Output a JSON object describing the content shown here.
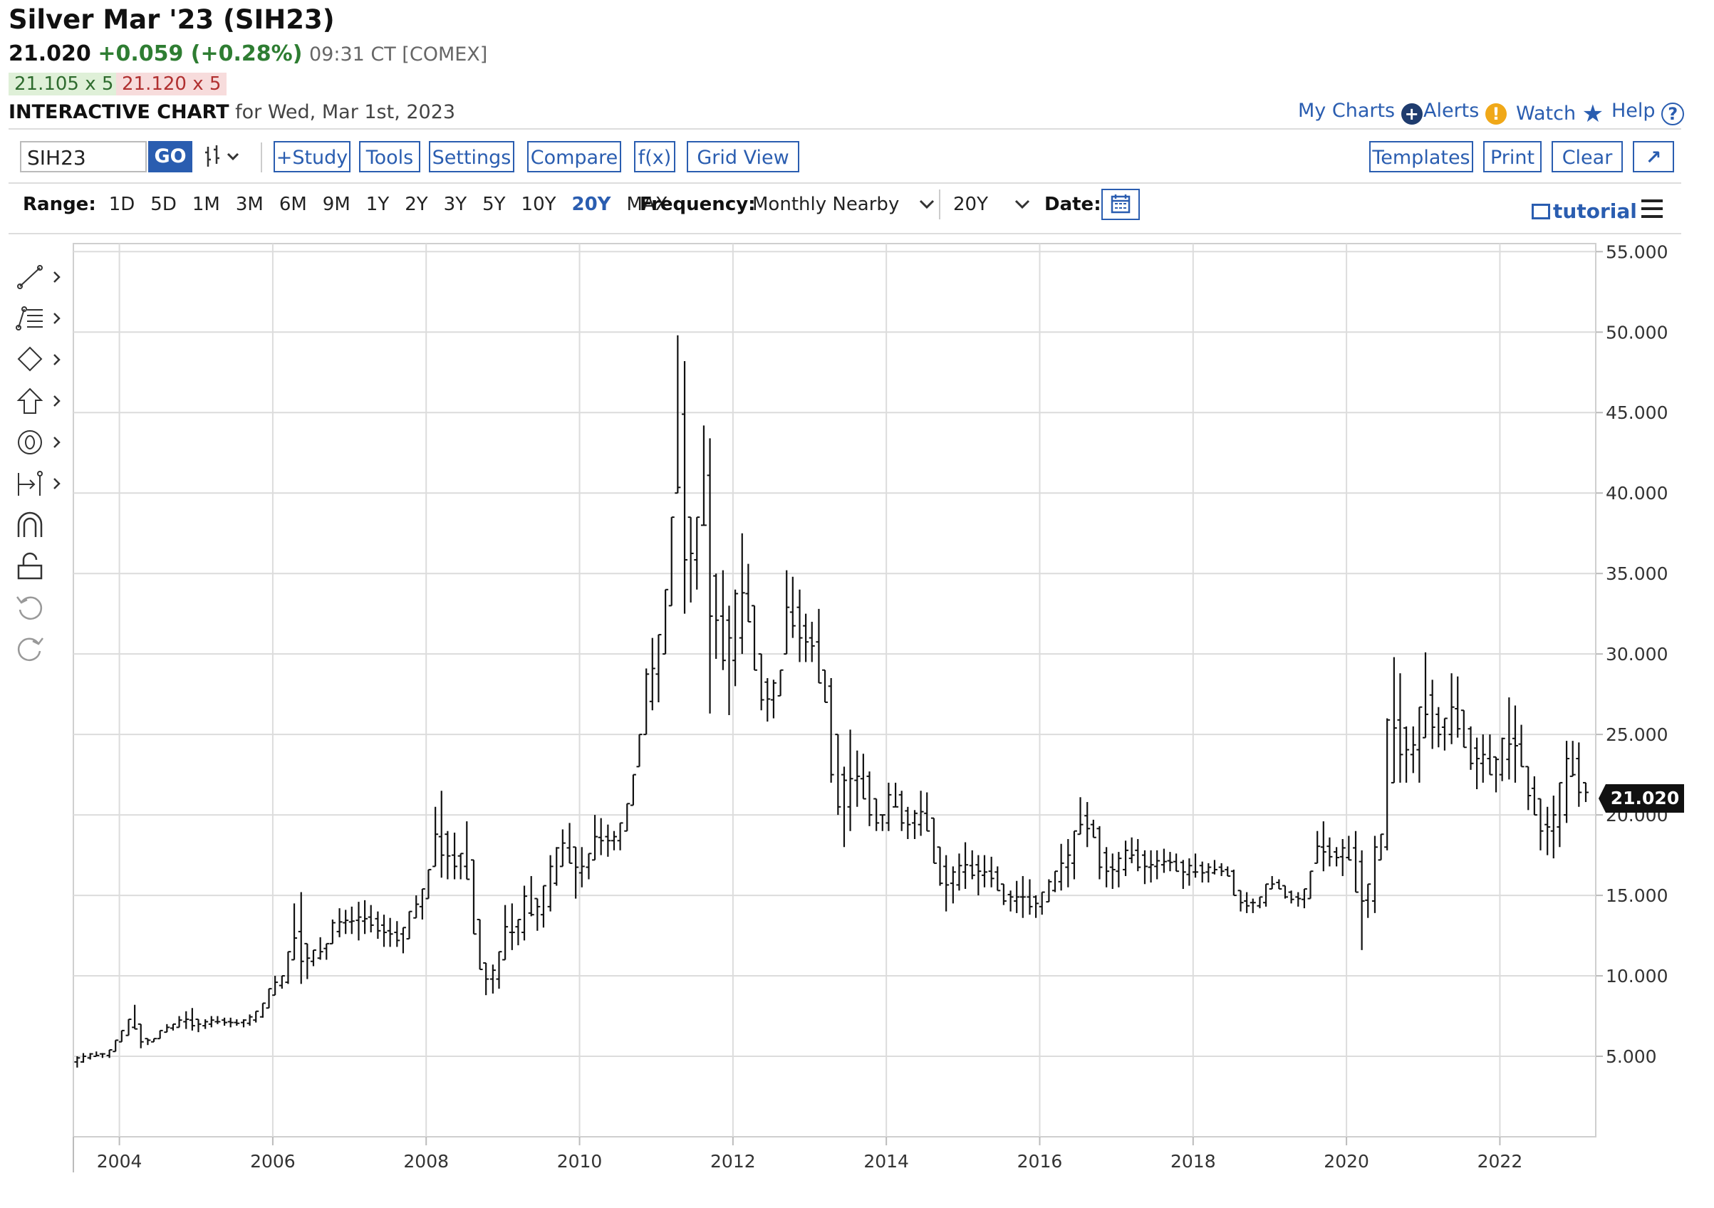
{
  "header": {
    "title": "Silver Mar '23 (SIH23)",
    "last": "21.020",
    "change": "+0.059 (+0.28%)",
    "time": "09:31 CT [COMEX]",
    "bid": "21.105 x 5",
    "ask": "21.120 x 5",
    "chart_label": "INTERACTIVE CHART",
    "chart_date": "for Wed, Mar 1st, 2023"
  },
  "toplinks": {
    "my_charts": "My Charts",
    "alerts": "Alerts",
    "watch": "Watch",
    "help": "Help"
  },
  "toolbar": {
    "symbol_value": "SIH23",
    "go": "GO",
    "study": "+Study",
    "tools": "Tools",
    "settings": "Settings",
    "compare": "Compare",
    "fx": "f(x)",
    "grid_view": "Grid View",
    "templates": "Templates",
    "print": "Print",
    "clear": "Clear",
    "expand": "↗"
  },
  "rangebar": {
    "range_label": "Range:",
    "ranges": [
      "1D",
      "5D",
      "1M",
      "3M",
      "6M",
      "9M",
      "1Y",
      "2Y",
      "3Y",
      "5Y",
      "10Y",
      "20Y",
      "MAX"
    ],
    "active_range": "20Y",
    "frequency_label": "Frequency:",
    "frequency_value": "Monthly Nearby",
    "period_value": "20Y",
    "date_label": "Date:",
    "tutorial": "tutorial"
  },
  "colors": {
    "accent": "#2a5db0",
    "up": "#2e7d32",
    "down": "#b03030",
    "bars": "#111111",
    "grid": "#dcdcdc"
  },
  "chart_data": {
    "type": "ohlc-bar",
    "title": "",
    "xlabel": "",
    "ylabel": "",
    "x_ticks": [
      "2004",
      "2006",
      "2008",
      "2010",
      "2012",
      "2014",
      "2016",
      "2018",
      "2020",
      "2022"
    ],
    "y_ticks": [
      "5.000",
      "10.000",
      "15.000",
      "20.000",
      "25.000",
      "30.000",
      "35.000",
      "40.000",
      "45.000",
      "50.000",
      "55.000"
    ],
    "ylim": [
      0,
      55.5
    ],
    "xlim": [
      2003.4,
      2023.25
    ],
    "last_price": "21.020",
    "grid": true,
    "frequency": "monthly",
    "x": [
      2003.45,
      2003.53,
      2003.62,
      2003.7,
      2003.78,
      2003.87,
      2003.95,
      2004.03,
      2004.12,
      2004.2,
      2004.28,
      2004.37,
      2004.45,
      2004.53,
      2004.62,
      2004.7,
      2004.78,
      2004.87,
      2004.95,
      2005.03,
      2005.12,
      2005.2,
      2005.28,
      2005.37,
      2005.45,
      2005.53,
      2005.62,
      2005.7,
      2005.78,
      2005.87,
      2005.95,
      2006.03,
      2006.12,
      2006.2,
      2006.28,
      2006.37,
      2006.45,
      2006.53,
      2006.62,
      2006.7,
      2006.78,
      2006.87,
      2006.95,
      2007.03,
      2007.12,
      2007.2,
      2007.28,
      2007.37,
      2007.45,
      2007.53,
      2007.62,
      2007.7,
      2007.78,
      2007.87,
      2007.95,
      2008.03,
      2008.12,
      2008.2,
      2008.28,
      2008.37,
      2008.45,
      2008.53,
      2008.62,
      2008.7,
      2008.78,
      2008.87,
      2008.95,
      2009.03,
      2009.12,
      2009.2,
      2009.28,
      2009.37,
      2009.45,
      2009.53,
      2009.62,
      2009.7,
      2009.78,
      2009.87,
      2009.95,
      2010.03,
      2010.12,
      2010.2,
      2010.28,
      2010.37,
      2010.45,
      2010.53,
      2010.62,
      2010.7,
      2010.78,
      2010.87,
      2010.95,
      2011.03,
      2011.12,
      2011.2,
      2011.28,
      2011.37,
      2011.45,
      2011.53,
      2011.62,
      2011.7,
      2011.78,
      2011.87,
      2011.95,
      2012.03,
      2012.12,
      2012.2,
      2012.28,
      2012.37,
      2012.45,
      2012.53,
      2012.62,
      2012.7,
      2012.78,
      2012.87,
      2012.95,
      2013.03,
      2013.12,
      2013.2,
      2013.28,
      2013.37,
      2013.45,
      2013.53,
      2013.62,
      2013.7,
      2013.78,
      2013.87,
      2013.95,
      2014.03,
      2014.12,
      2014.2,
      2014.28,
      2014.37,
      2014.45,
      2014.53,
      2014.62,
      2014.7,
      2014.78,
      2014.87,
      2014.95,
      2015.03,
      2015.12,
      2015.2,
      2015.28,
      2015.37,
      2015.45,
      2015.53,
      2015.62,
      2015.7,
      2015.78,
      2015.87,
      2015.95,
      2016.03,
      2016.12,
      2016.2,
      2016.28,
      2016.37,
      2016.45,
      2016.53,
      2016.62,
      2016.7,
      2016.78,
      2016.87,
      2016.95,
      2017.03,
      2017.12,
      2017.2,
      2017.28,
      2017.37,
      2017.45,
      2017.53,
      2017.62,
      2017.7,
      2017.78,
      2017.87,
      2017.95,
      2018.03,
      2018.12,
      2018.2,
      2018.28,
      2018.37,
      2018.45,
      2018.53,
      2018.62,
      2018.7,
      2018.78,
      2018.87,
      2018.95,
      2019.03,
      2019.12,
      2019.2,
      2019.28,
      2019.37,
      2019.45,
      2019.53,
      2019.62,
      2019.7,
      2019.78,
      2019.87,
      2019.95,
      2020.03,
      2020.12,
      2020.2,
      2020.28,
      2020.37,
      2020.45,
      2020.53,
      2020.62,
      2020.7,
      2020.78,
      2020.87,
      2020.95,
      2021.03,
      2021.12,
      2021.2,
      2021.28,
      2021.37,
      2021.45,
      2021.53,
      2021.62,
      2021.7,
      2021.78,
      2021.87,
      2021.95,
      2022.03,
      2022.12,
      2022.2,
      2022.28,
      2022.37,
      2022.45,
      2022.53,
      2022.62,
      2022.7,
      2022.78,
      2022.87,
      2022.95,
      2023.03,
      2023.12
    ],
    "high": [
      5.0,
      5.2,
      5.2,
      5.3,
      5.2,
      5.4,
      6.0,
      6.6,
      7.3,
      8.2,
      7.0,
      6.1,
      6.1,
      6.6,
      7.0,
      7.0,
      7.5,
      7.8,
      8.0,
      7.3,
      7.3,
      7.5,
      7.5,
      7.4,
      7.4,
      7.3,
      7.3,
      7.6,
      7.8,
      8.3,
      9.2,
      10.0,
      10.0,
      11.5,
      14.5,
      15.2,
      12.0,
      11.6,
      12.4,
      12.0,
      13.5,
      14.2,
      14.1,
      14.3,
      14.6,
      14.7,
      14.4,
      14.0,
      13.8,
      13.6,
      13.4,
      13.0,
      14.0,
      15.0,
      15.4,
      16.6,
      20.5,
      21.5,
      19.0,
      18.9,
      17.6,
      19.6,
      17.2,
      13.5,
      10.8,
      10.7,
      11.5,
      14.4,
      14.5,
      13.5,
      15.6,
      16.2,
      14.8,
      15.6,
      17.5,
      18.0,
      19.1,
      19.5,
      18.0,
      18.0,
      17.6,
      20.0,
      19.8,
      19.4,
      19.0,
      19.5,
      20.7,
      22.5,
      25.0,
      29.1,
      31.0,
      31.2,
      34.0,
      38.5,
      49.8,
      48.2,
      38.5,
      38.5,
      44.2,
      43.4,
      35.0,
      35.2,
      33.0,
      34.0,
      37.5,
      35.6,
      33.0,
      30.0,
      28.5,
      28.4,
      29.0,
      35.2,
      34.8,
      34.0,
      32.5,
      32.0,
      32.8,
      29.0,
      28.5,
      25.0,
      23.0,
      25.3,
      24.0,
      23.8,
      22.7,
      21.0,
      20.0,
      22.0,
      22.0,
      21.5,
      20.5,
      20.3,
      21.5,
      21.4,
      19.8,
      18.0,
      17.5,
      16.8,
      17.6,
      18.3,
      17.8,
      17.5,
      17.5,
      17.4,
      16.8,
      15.7,
      15.3,
      15.9,
      16.2,
      16.0,
      15.0,
      15.2,
      16.0,
      16.5,
      18.2,
      18.5,
      19.0,
      21.1,
      20.8,
      19.7,
      19.3,
      18.0,
      17.6,
      17.7,
      18.4,
      18.6,
      18.5,
      17.8,
      17.8,
      17.8,
      17.9,
      17.7,
      17.6,
      17.2,
      17.3,
      17.6,
      17.1,
      17.0,
      17.2,
      17.0,
      16.8,
      16.6,
      15.3,
      15.2,
      14.8,
      14.9,
      15.7,
      16.2,
      16.0,
      15.6,
      15.3,
      15.2,
      15.4,
      16.5,
      19.0,
      19.6,
      18.6,
      18.0,
      18.5,
      18.7,
      19.0,
      17.8,
      15.7,
      18.7,
      18.8,
      26.0,
      29.8,
      28.8,
      25.5,
      25.5,
      26.7,
      30.1,
      28.4,
      26.7,
      26.0,
      28.8,
      28.6,
      26.5,
      25.5,
      24.8,
      25.0,
      25.0,
      23.6,
      24.8,
      27.3,
      26.8,
      25.6,
      23.0,
      22.4,
      21.0,
      20.5,
      21.2,
      22.0,
      24.6,
      24.6,
      24.5,
      22.0
    ],
    "low": [
      4.3,
      4.6,
      4.8,
      5.0,
      4.9,
      4.9,
      5.3,
      5.9,
      6.3,
      6.7,
      5.5,
      5.7,
      5.9,
      6.1,
      6.5,
      6.6,
      6.8,
      6.7,
      6.6,
      6.5,
      6.7,
      6.8,
      7.0,
      6.9,
      6.8,
      6.9,
      6.8,
      6.9,
      7.1,
      7.4,
      8.0,
      8.8,
      9.2,
      9.5,
      11.0,
      9.5,
      9.8,
      10.6,
      11.0,
      11.0,
      12.0,
      12.4,
      12.6,
      12.6,
      12.2,
      12.6,
      12.7,
      12.3,
      11.8,
      11.8,
      11.8,
      11.4,
      12.3,
      13.6,
      13.5,
      14.8,
      16.8,
      16.1,
      16.0,
      16.0,
      16.0,
      16.0,
      12.6,
      10.4,
      8.8,
      8.9,
      9.2,
      11.0,
      11.6,
      11.9,
      12.2,
      13.7,
      12.8,
      13.0,
      14.0,
      15.6,
      16.8,
      17.0,
      14.8,
      15.5,
      16.0,
      17.2,
      17.5,
      17.4,
      17.8,
      17.8,
      19.0,
      20.6,
      23.0,
      25.0,
      26.5,
      27.0,
      30.0,
      33.0,
      40.0,
      32.5,
      33.2,
      34.0,
      38.0,
      26.3,
      29.7,
      29.0,
      26.2,
      28.0,
      30.0,
      32.0,
      29.0,
      26.5,
      25.8,
      26.0,
      27.4,
      30.0,
      31.0,
      29.5,
      29.5,
      29.5,
      28.2,
      27.0,
      22.0,
      20.0,
      18.0,
      19.0,
      20.5,
      21.0,
      19.3,
      19.0,
      19.0,
      19.0,
      20.5,
      19.0,
      18.5,
      18.5,
      18.7,
      19.0,
      17.0,
      15.6,
      14.0,
      14.5,
      15.3,
      15.4,
      16.0,
      15.0,
      15.5,
      15.5,
      15.3,
      14.4,
      14.0,
      13.9,
      13.6,
      13.8,
      13.6,
      13.8,
      14.6,
      15.2,
      15.3,
      15.5,
      16.0,
      18.8,
      18.0,
      18.6,
      16.0,
      15.5,
      15.4,
      15.5,
      16.2,
      17.0,
      16.5,
      15.7,
      15.8,
      16.0,
      16.4,
      16.5,
      16.5,
      15.4,
      15.6,
      16.1,
      15.8,
      15.8,
      16.3,
      16.2,
      16.2,
      15.0,
      14.0,
      13.9,
      13.9,
      14.2,
      14.3,
      15.4,
      15.4,
      14.8,
      14.5,
      14.3,
      14.2,
      14.8,
      17.0,
      16.5,
      16.8,
      16.8,
      16.2,
      17.2,
      15.2,
      11.6,
      13.6,
      13.9,
      17.2,
      17.8,
      22.0,
      22.0,
      22.0,
      22.6,
      22.0,
      24.8,
      24.1,
      24.2,
      24.0,
      24.4,
      24.8,
      24.2,
      22.8,
      21.6,
      22.0,
      22.5,
      21.4,
      22.1,
      22.2,
      22.0,
      23.0,
      20.3,
      20.0,
      17.8,
      17.5,
      17.3,
      18.0,
      19.5,
      22.4,
      20.5,
      20.8
    ]
  }
}
